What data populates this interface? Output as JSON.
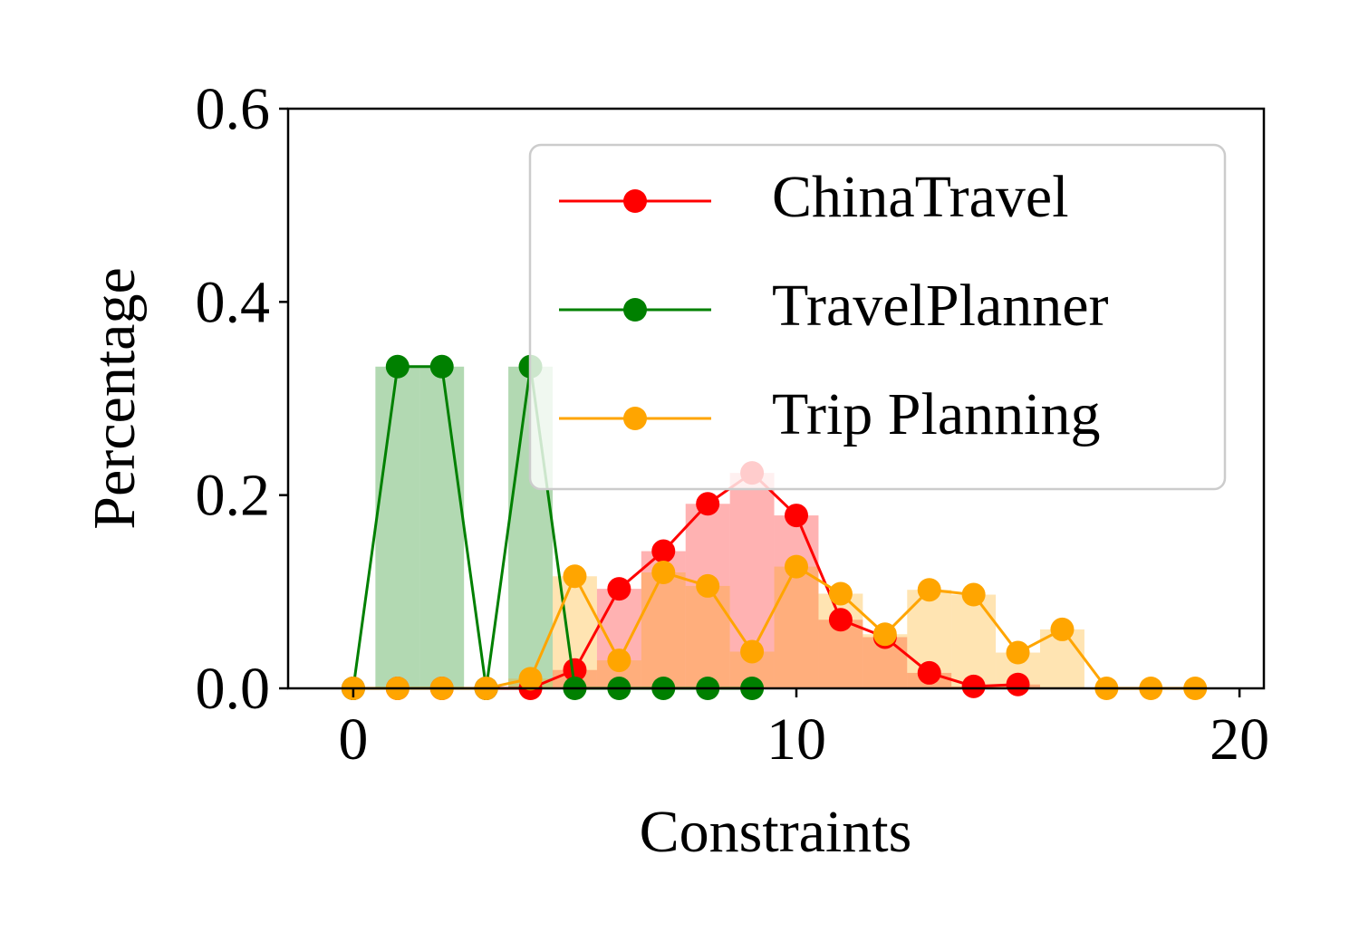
{
  "chart_data": {
    "type": "line",
    "xlabel": "Constraints",
    "ylabel": "Percentage",
    "xlim": [
      -1.47,
      20.55
    ],
    "ylim": [
      0,
      0.6
    ],
    "xticks": [
      0,
      10,
      20
    ],
    "yticks": [
      {
        "value": 0,
        "label": "0.0"
      },
      {
        "value": 0.2,
        "label": "0.2"
      },
      {
        "value": 0.4,
        "label": "0.4"
      },
      {
        "value": 0.6,
        "label": "0.6"
      }
    ],
    "legend": "upper right",
    "bars": true,
    "series": [
      {
        "name": "ChinaTravel",
        "color": "#ff0000",
        "x": [
          0,
          1,
          2,
          3,
          4,
          5,
          6,
          7,
          8,
          9,
          10,
          11,
          12,
          13,
          14,
          15
        ],
        "values": [
          0,
          0,
          0,
          0,
          0,
          0.019,
          0.103,
          0.142,
          0.191,
          0.223,
          0.179,
          0.071,
          0.053,
          0.016,
          0.002,
          0.004
        ]
      },
      {
        "name": "TravelPlanner",
        "color": "#008000",
        "x": [
          0,
          1,
          2,
          3,
          4,
          5,
          6,
          7,
          8,
          9
        ],
        "values": [
          0,
          0.333,
          0.333,
          0,
          0.333,
          0,
          0,
          0,
          0,
          0
        ]
      },
      {
        "name": "Trip Planning",
        "color": "#ffa500",
        "x": [
          0,
          1,
          2,
          3,
          4,
          5,
          6,
          7,
          8,
          9,
          10,
          11,
          12,
          13,
          14,
          15,
          16,
          17,
          18,
          19
        ],
        "values": [
          0,
          0,
          0,
          0,
          0.01,
          0.116,
          0.029,
          0.12,
          0.106,
          0.038,
          0.126,
          0.098,
          0.056,
          0.102,
          0.097,
          0.037,
          0.061,
          0,
          0,
          0
        ]
      }
    ]
  }
}
